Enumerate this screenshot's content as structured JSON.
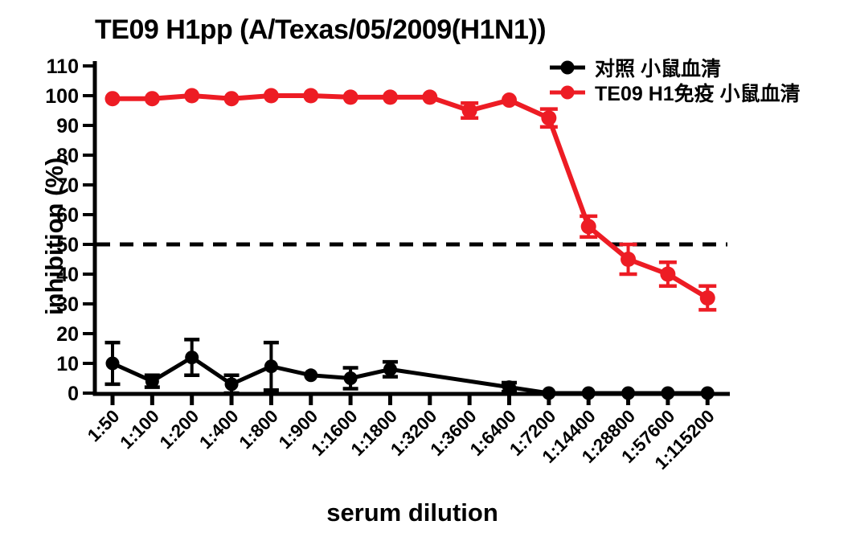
{
  "chart_data": {
    "type": "line",
    "title": "TE09 H1pp (A/Texas/05/2009(H1N1))",
    "xlabel": "serum dilution",
    "ylabel": "inhibition (%)",
    "categories": [
      "1:50",
      "1:100",
      "1:200",
      "1:400",
      "1:800",
      "1:900",
      "1:1600",
      "1:1800",
      "1:3200",
      "1:3600",
      "1:6400",
      "1:7200",
      "1:14400",
      "1:28800",
      "1:57600",
      "1:115200"
    ],
    "ylim": [
      0,
      110
    ],
    "ytick_step": 10,
    "grid": false,
    "legend_position": "top-right",
    "reference_line": {
      "y": 50,
      "style": "dashed",
      "color": "#000000"
    },
    "series": [
      {
        "name": "对照 小鼠血清",
        "color": "#000000",
        "marker": "circle",
        "values": [
          10,
          4,
          12,
          3,
          9,
          6,
          5,
          8,
          null,
          null,
          2,
          0,
          0,
          0,
          0,
          0
        ],
        "errors": [
          7,
          2,
          6,
          3,
          8,
          0,
          3.5,
          2.5,
          null,
          null,
          1.5,
          0,
          0,
          0,
          0,
          0
        ]
      },
      {
        "name": "TE09 H1免疫 小鼠血清",
        "color": "#ED1C24",
        "marker": "circle",
        "values": [
          99,
          99,
          100,
          99,
          100,
          100,
          99.5,
          99.5,
          99.5,
          95,
          98.5,
          92.5,
          56,
          45,
          40,
          32
        ],
        "errors": [
          0,
          0,
          0,
          0,
          0,
          0,
          0,
          0,
          0,
          2.5,
          0,
          3,
          3.5,
          5,
          4,
          4
        ]
      }
    ]
  }
}
